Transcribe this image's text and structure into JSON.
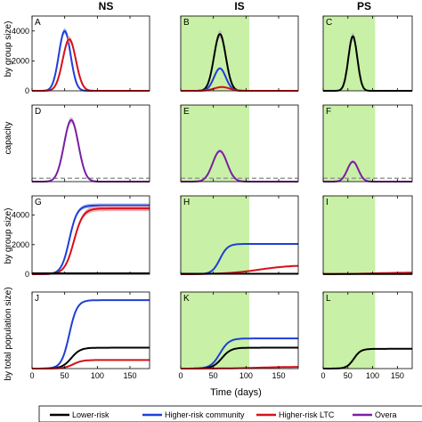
{
  "columns": {
    "ns": "NS",
    "is": "IS",
    "ps": "PS"
  },
  "ylabels": {
    "row1": "by group size)",
    "row2": "capacity",
    "row3": "by group size)",
    "row4": "by total population size)"
  },
  "xlabel": "Time (days)",
  "legend": [
    {
      "name": "Lower-risk",
      "color": "#000000"
    },
    {
      "name": "Higher-risk community",
      "color": "#1f3fd6"
    },
    {
      "name": "Higher-risk LTC",
      "color": "#d6101a"
    },
    {
      "name": "Overa",
      "color": "#7a1fa2"
    }
  ],
  "colors": {
    "shade": "#c8f0a6",
    "band_gray": "#bbbbbb",
    "band_blue": "#9fb4f0",
    "band_red": "#f0a0a6",
    "band_purple": "#d8b0e8",
    "dashed": "#999999"
  },
  "chart_data": [
    {
      "panel": "A",
      "type": "line",
      "xlim": [
        0,
        180
      ],
      "ylim": [
        0,
        5000
      ],
      "xticks": [
        0,
        50,
        100,
        150
      ],
      "yticks": [
        0,
        2000,
        4000
      ],
      "shade": null,
      "series": [
        {
          "color": "blue",
          "kind": "peak",
          "peak": 4000,
          "center": 50,
          "width": 9,
          "band": 0.05
        },
        {
          "color": "red",
          "kind": "peak",
          "peak": 3450,
          "center": 57,
          "width": 10,
          "band": 0.06
        }
      ]
    },
    {
      "panel": "B",
      "type": "line",
      "xlim": [
        0,
        180
      ],
      "ylim": [
        0,
        5000
      ],
      "xticks": [
        0,
        50,
        100,
        150
      ],
      "yticks": [],
      "shade": [
        0,
        105
      ],
      "series": [
        {
          "color": "black",
          "kind": "peak",
          "peak": 3800,
          "center": 60,
          "width": 9,
          "band": 0.07
        },
        {
          "color": "blue",
          "kind": "peak",
          "peak": 1500,
          "center": 60,
          "width": 9,
          "band": 0.05
        },
        {
          "color": "red",
          "kind": "peak",
          "peak": 250,
          "center": 63,
          "width": 12,
          "band": 0.0
        }
      ]
    },
    {
      "panel": "C",
      "type": "line",
      "xlim": [
        0,
        180
      ],
      "ylim": [
        0,
        5000
      ],
      "xticks": [
        0,
        50,
        100,
        150
      ],
      "yticks": [],
      "shade": [
        0,
        105
      ],
      "series": [
        {
          "color": "black",
          "kind": "peak",
          "peak": 3650,
          "center": 60,
          "width": 9,
          "band": 0.07
        }
      ]
    },
    {
      "panel": "D",
      "type": "line",
      "xlim": [
        0,
        180
      ],
      "ylim": [
        0,
        2300
      ],
      "xticks": [
        0,
        50,
        100,
        150
      ],
      "yticks": [],
      "shade": null,
      "hline": 100,
      "series": [
        {
          "color": "purple",
          "kind": "peak",
          "peak": 1850,
          "center": 60,
          "width": 11,
          "band": 0.05
        }
      ]
    },
    {
      "panel": "E",
      "type": "line",
      "xlim": [
        0,
        180
      ],
      "ylim": [
        0,
        2300
      ],
      "xticks": [
        0,
        50,
        100,
        150
      ],
      "yticks": [],
      "shade": [
        0,
        105
      ],
      "hline": 100,
      "series": [
        {
          "color": "purple",
          "kind": "peak",
          "peak": 920,
          "center": 60,
          "width": 11,
          "band": 0.06
        }
      ]
    },
    {
      "panel": "F",
      "type": "line",
      "xlim": [
        0,
        180
      ],
      "ylim": [
        0,
        2300
      ],
      "xticks": [
        0,
        50,
        100,
        150
      ],
      "yticks": [],
      "shade": [
        0,
        105
      ],
      "hline": 100,
      "series": [
        {
          "color": "purple",
          "kind": "peak",
          "peak": 600,
          "center": 60,
          "width": 11,
          "band": 0.08
        }
      ]
    },
    {
      "panel": "G",
      "type": "line",
      "xlim": [
        0,
        180
      ],
      "ylim": [
        0,
        5300
      ],
      "xticks": [
        0,
        50,
        100,
        150
      ],
      "yticks": [
        0,
        2000,
        4000
      ],
      "shade": null,
      "series": [
        {
          "color": "blue",
          "kind": "sig",
          "final": 4650,
          "center": 57,
          "width": 6,
          "band": 0.03
        },
        {
          "color": "red",
          "kind": "sig",
          "final": 4450,
          "center": 64,
          "width": 7,
          "band": 0.04
        },
        {
          "color": "black",
          "kind": "flat",
          "final": 60
        }
      ]
    },
    {
      "panel": "H",
      "type": "line",
      "xlim": [
        0,
        180
      ],
      "ylim": [
        0,
        5300
      ],
      "xticks": [
        0,
        50,
        100,
        150
      ],
      "yticks": [],
      "shade": [
        0,
        105
      ],
      "series": [
        {
          "color": "blue",
          "kind": "sig",
          "final": 2050,
          "center": 60,
          "width": 6,
          "band": 0.0
        },
        {
          "color": "red",
          "kind": "sig",
          "final": 620,
          "center": 120,
          "width": 25,
          "band": 0.0
        },
        {
          "color": "black",
          "kind": "flat",
          "final": 30
        }
      ]
    },
    {
      "panel": "I",
      "type": "line",
      "xlim": [
        0,
        180
      ],
      "ylim": [
        0,
        5300
      ],
      "xticks": [
        0,
        50,
        100,
        150
      ],
      "yticks": [],
      "shade": [
        0,
        105
      ],
      "series": [
        {
          "color": "red",
          "kind": "sig",
          "final": 110,
          "center": 100,
          "width": 30,
          "band": 0.0
        },
        {
          "color": "black",
          "kind": "flat",
          "final": 20
        }
      ]
    },
    {
      "panel": "J",
      "type": "line",
      "xlim": [
        0,
        180
      ],
      "ylim": [
        0,
        330
      ],
      "xticks": [
        0,
        50,
        100,
        150
      ],
      "yticks": [],
      "shade": null,
      "series": [
        {
          "color": "blue",
          "kind": "sig",
          "final": 295,
          "center": 57,
          "width": 6,
          "band": 0.0
        },
        {
          "color": "black",
          "kind": "sig",
          "final": 90,
          "center": 60,
          "width": 7,
          "band": 0.0
        },
        {
          "color": "red",
          "kind": "sig",
          "final": 37,
          "center": 63,
          "width": 7,
          "band": 0.0
        }
      ]
    },
    {
      "panel": "K",
      "type": "line",
      "xlim": [
        0,
        180
      ],
      "ylim": [
        0,
        330
      ],
      "xticks": [
        0,
        50,
        100,
        150
      ],
      "yticks": [],
      "shade": [
        0,
        105
      ],
      "series": [
        {
          "color": "blue",
          "kind": "sig",
          "final": 130,
          "center": 60,
          "width": 7,
          "band": 0.0
        },
        {
          "color": "black",
          "kind": "sig",
          "final": 90,
          "center": 63,
          "width": 7,
          "band": 0.0
        },
        {
          "color": "red",
          "kind": "sig",
          "final": 8,
          "center": 120,
          "width": 25,
          "band": 0.0
        }
      ]
    },
    {
      "panel": "L",
      "type": "line",
      "xlim": [
        0,
        180
      ],
      "ylim": [
        0,
        330
      ],
      "xticks": [
        0,
        50,
        100,
        150
      ],
      "yticks": [],
      "shade": [
        0,
        105
      ],
      "series": [
        {
          "color": "black",
          "kind": "sig",
          "final": 85,
          "center": 62,
          "width": 7,
          "band": 0.0
        }
      ]
    }
  ]
}
